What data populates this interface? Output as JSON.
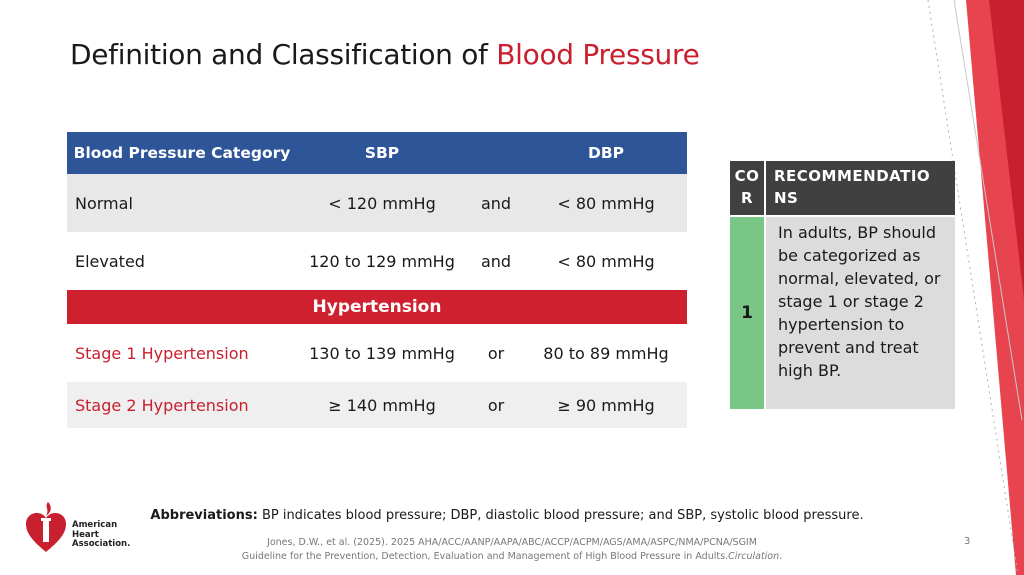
{
  "slide": {
    "title_prefix": "Definition and Classification of ",
    "title_accent": "Blood Pressure",
    "page_number": "3"
  },
  "bp_table": {
    "headers": [
      "Blood Pressure Category",
      "SBP",
      "",
      "DBP"
    ],
    "rows": [
      {
        "category": "Normal",
        "sbp": "< 120 mmHg",
        "conj": "and",
        "dbp": "< 80 mmHg"
      },
      {
        "category": "Elevated",
        "sbp": "120 to 129 mmHg",
        "conj": "and",
        "dbp": "< 80 mmHg"
      }
    ],
    "hypertension_label": "Hypertension",
    "hypertension_rows": [
      {
        "category": "Stage 1 Hypertension",
        "sbp": "130 to 139 mmHg",
        "conj": "or",
        "dbp": "80 to 89 mmHg"
      },
      {
        "category": "Stage 2 Hypertension",
        "sbp": "≥ 140 mmHg",
        "conj": "or",
        "dbp": "≥ 90 mmHg"
      }
    ]
  },
  "cor_table": {
    "header_cor": "CO R",
    "header_rec": "RECOMMENDATIO NS",
    "level": "1",
    "recommendation": "In adults, BP should be categorized as normal, elevated, or stage 1 or stage 2 hypertension to prevent and treat high BP."
  },
  "footer": {
    "abbr_label": "Abbreviations:",
    "abbr_text": " BP indicates blood pressure; DBP, diastolic blood pressure; and SBP, systolic blood pressure.",
    "citation_line1": "Jones, D.W., et al. (2025). 2025 AHA/ACC/AANP/AAPA/ABC/ACCP/ACPM/AGS/AMA/ASPC/NMA/PCNA/SGIM",
    "citation_line2": "Guideline for the Prevention, Detection, Evaluation and Management of High Blood Pressure in Adults.",
    "citation_journal": "Circulation",
    "citation_end": "."
  },
  "logo": {
    "icon": "heart-torch-icon",
    "line1": "American",
    "line2": "Heart",
    "line3": "Association."
  },
  "colors": {
    "accent_red": "#c8202e",
    "header_blue": "#2e5597",
    "cor_green": "#7ac687",
    "cor_header": "#404040"
  }
}
